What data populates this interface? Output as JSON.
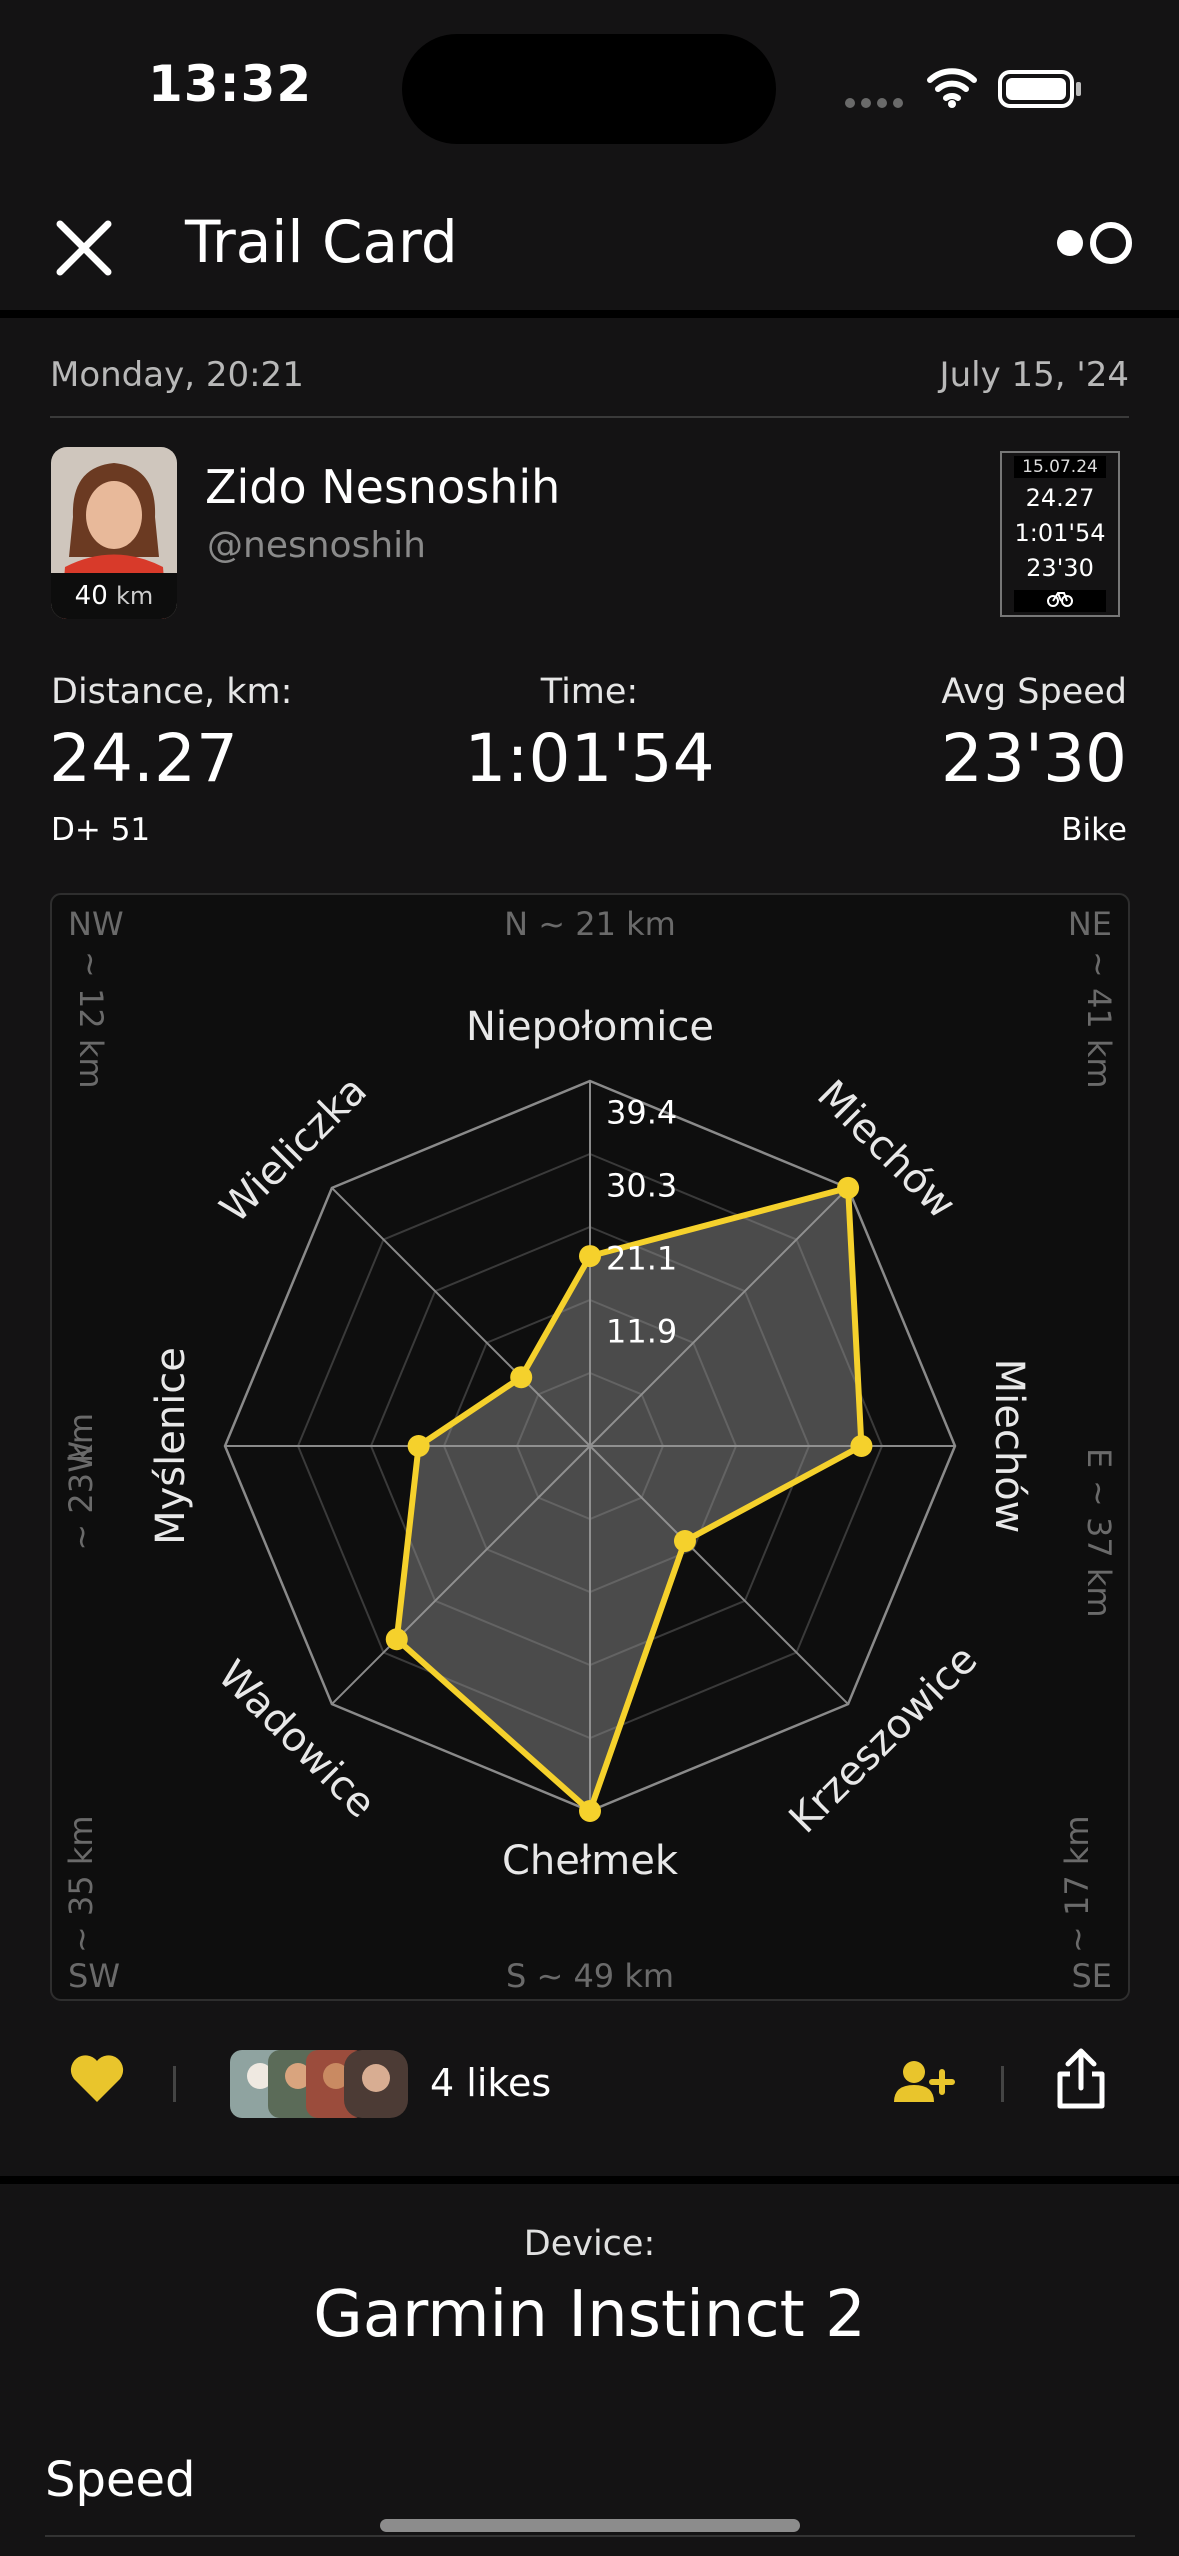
{
  "status": {
    "time": "13:32"
  },
  "nav": {
    "title": "Trail Card"
  },
  "meta": {
    "day_time": "Monday, 20:21",
    "date": "July 15, '24"
  },
  "user": {
    "name": "Zido Nesnoshih",
    "handle": "@nesnoshih",
    "badge_value": "40",
    "badge_unit": "km"
  },
  "mini_card": {
    "date": "15.07.24",
    "distance": "24.27",
    "time": "1:01'54",
    "speed": "23'30"
  },
  "stats": {
    "distance_label": "Distance, km:",
    "distance_value": "24.27",
    "elevation": "D+ 51",
    "time_label": "Time:",
    "time_value": "1:01'54",
    "speed_label": "Avg Speed",
    "speed_value": "23'30",
    "activity": "Bike"
  },
  "chart_data": {
    "type": "radar",
    "categories": [
      "Niepołomice",
      "Miechów",
      "Miechów",
      "Krzeszowice",
      "Chełmek",
      "Wadowice",
      "Myślenice",
      "Wieliczka"
    ],
    "values": [
      20.5,
      39.5,
      29.3,
      14.5,
      39.5,
      29.5,
      18.5,
      10.5
    ],
    "ticks": [
      "11.9",
      "21.1",
      "30.3",
      "39.4"
    ],
    "rmax": 39.4,
    "series_color": "#f5d12c",
    "corners": {
      "nw": "NW",
      "nw_dist": "~ 12 km",
      "n": "N  ~  21 km",
      "ne": "NE",
      "ne_dist": "~ 41 km",
      "w": "W",
      "w_dist": "~ 23 km",
      "e": "E",
      "e_dist": "~ 37 km",
      "sw": "SW",
      "sw_dist": "~ 35 km",
      "s": "S  ~  49 km",
      "se": "SE",
      "se_dist": "~ 17 km"
    }
  },
  "social": {
    "likes": "4 likes"
  },
  "device": {
    "label": "Device:",
    "name": "Garmin Instinct 2"
  },
  "section": {
    "title": "Speed"
  },
  "colors": {
    "accent": "#f5d12c",
    "background": "#141314"
  }
}
